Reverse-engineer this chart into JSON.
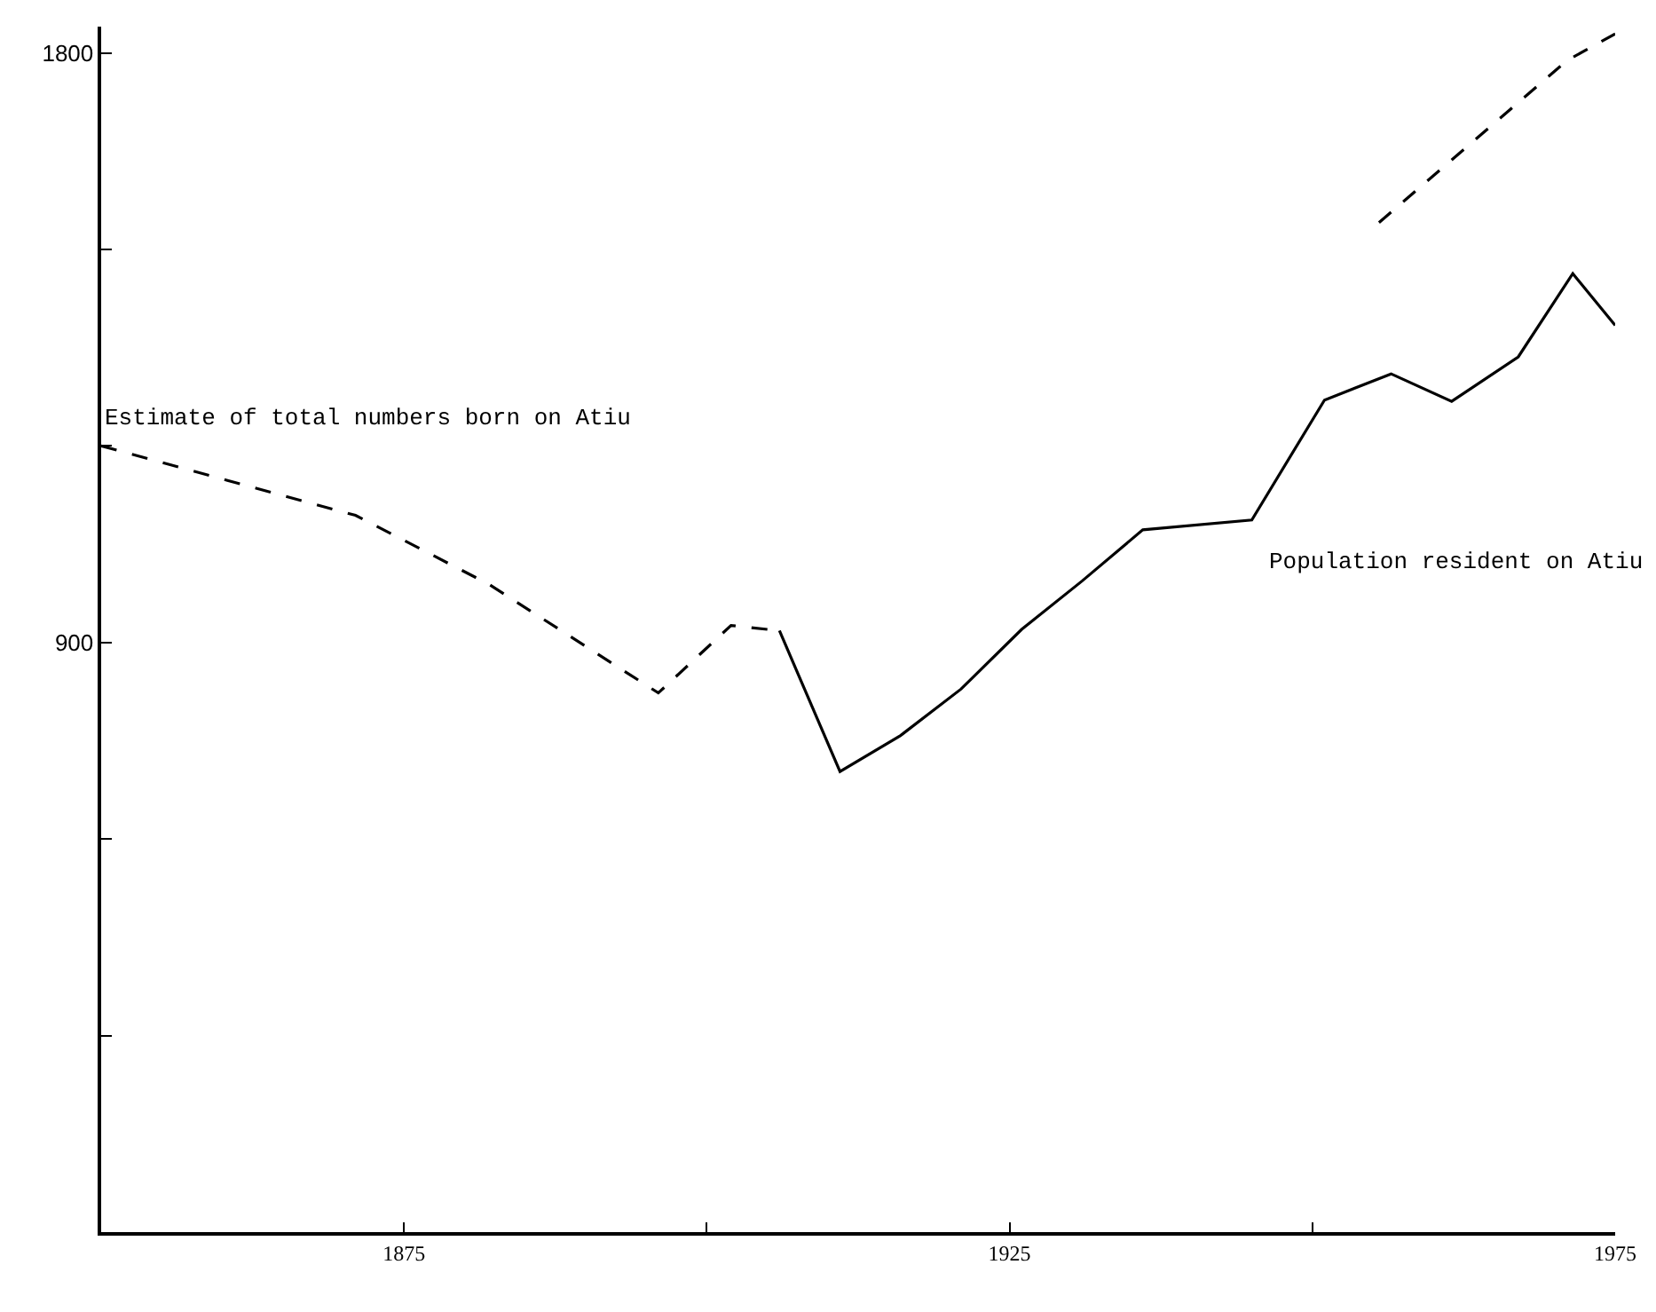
{
  "chart_data": {
    "type": "line",
    "xlim": [
      1850,
      1975
    ],
    "ylim": [
      0,
      1840
    ],
    "xticks": [
      {
        "value": 1875,
        "label": "1875"
      },
      {
        "value": 1900,
        "label": null
      },
      {
        "value": 1925,
        "label": "1925"
      },
      {
        "value": 1950,
        "label": null
      },
      {
        "value": 1975,
        "label": "1975"
      }
    ],
    "yticks": [
      {
        "value": 0,
        "label": null
      },
      {
        "value": 300,
        "label": null
      },
      {
        "value": 600,
        "label": null
      },
      900,
      {
        "value": 1200,
        "label": null
      },
      {
        "value": 1500,
        "label": null
      },
      1800
    ],
    "marker": "none",
    "series": [
      {
        "name": "Estimate of total numbers born on Atiu",
        "color": "#000000",
        "line_style": "dashed",
        "x": [
          1850,
          1871,
          1882,
          1896,
          1902,
          1906,
          1930,
          1955.5,
          1971,
          1975
        ],
        "values": [
          1200,
          1094,
          989,
          823,
          926,
          918,
          null,
          1541,
          1788,
          1829
        ]
      },
      {
        "name": "Population resident on Atiu",
        "color": "#000000",
        "line_style": "solid",
        "x": [
          1906,
          1911,
          1916,
          1921,
          1926,
          1931,
          1936,
          1945,
          1951,
          1956.5,
          1961.5,
          1967,
          1971.5,
          1975
        ],
        "values": [
          918,
          703,
          758,
          829,
          920,
          994,
          1072,
          1087,
          1270,
          1310,
          1268,
          1336,
          1463,
          1384
        ]
      }
    ]
  }
}
